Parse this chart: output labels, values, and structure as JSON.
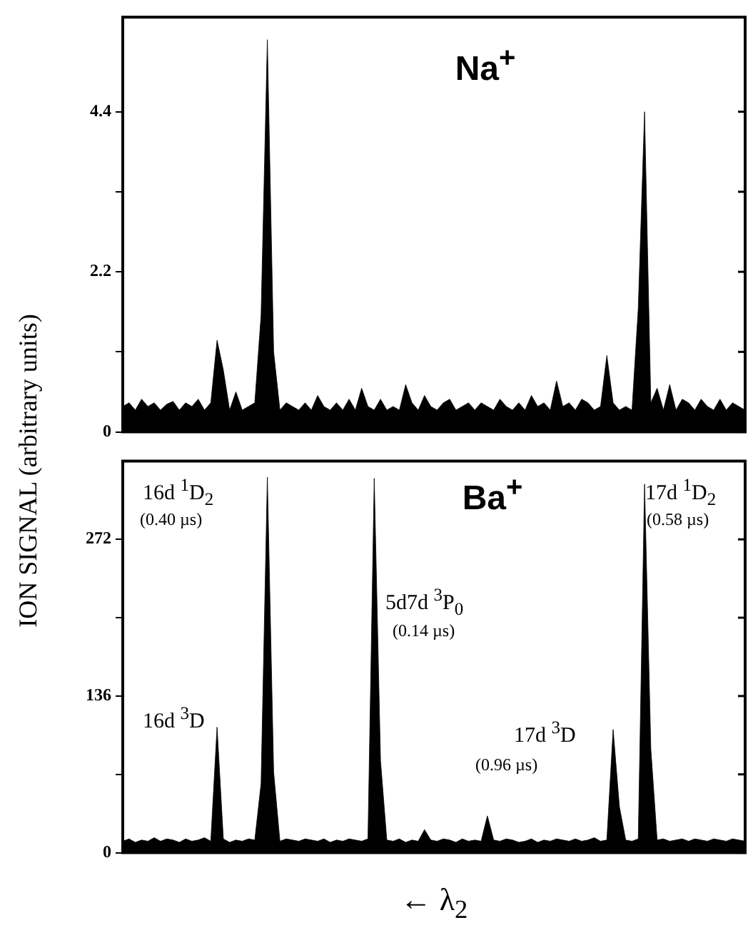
{
  "chart_data": [
    {
      "type": "area",
      "title": "Na$^{+}$",
      "ylabel": "ION SIGNAL (arbitrary units)",
      "color": "#000000",
      "tick_labels": "y",
      "legend": false,
      "ylim": [
        0,
        5.7
      ],
      "yticks": [
        0,
        {
          "value": 1.1,
          "label": null
        },
        2.2,
        {
          "value": 3.3,
          "label": null
        },
        4.4
      ],
      "categories": [
        null,
        null,
        null,
        null,
        null,
        null,
        null,
        null,
        null,
        null,
        null,
        null,
        null,
        null,
        null,
        null,
        null,
        null,
        null,
        null,
        null,
        null,
        null,
        null,
        null,
        null,
        null,
        null,
        null,
        null,
        null,
        null,
        null,
        null,
        null,
        null,
        null,
        null,
        null,
        null,
        null,
        null,
        null,
        null,
        null,
        null,
        null,
        null,
        null,
        null,
        null,
        null,
        null,
        null,
        null,
        null,
        null,
        null,
        null,
        null,
        null,
        null,
        null,
        null,
        null,
        null,
        null,
        null,
        null,
        null,
        null,
        null,
        null,
        null,
        null,
        null,
        null,
        null,
        null,
        null,
        null,
        null,
        null,
        null,
        null,
        null,
        null,
        null,
        null,
        null,
        null,
        null,
        null,
        null,
        null,
        null,
        null,
        null,
        null,
        null
      ],
      "values": [
        0.35,
        0.4,
        0.3,
        0.45,
        0.35,
        0.4,
        0.3,
        0.38,
        0.42,
        0.3,
        0.4,
        0.35,
        0.45,
        0.3,
        0.4,
        1.26,
        0.85,
        0.3,
        0.55,
        0.3,
        0.35,
        0.4,
        1.6,
        5.39,
        1.1,
        0.3,
        0.4,
        0.35,
        0.3,
        0.4,
        0.3,
        0.5,
        0.35,
        0.3,
        0.4,
        0.3,
        0.45,
        0.3,
        0.6,
        0.35,
        0.3,
        0.45,
        0.3,
        0.35,
        0.3,
        0.65,
        0.4,
        0.3,
        0.5,
        0.35,
        0.3,
        0.4,
        0.45,
        0.3,
        0.35,
        0.4,
        0.3,
        0.4,
        0.35,
        0.3,
        0.45,
        0.35,
        0.3,
        0.4,
        0.3,
        0.5,
        0.35,
        0.4,
        0.3,
        0.7,
        0.35,
        0.4,
        0.3,
        0.45,
        0.4,
        0.3,
        0.35,
        1.05,
        0.4,
        0.3,
        0.35,
        0.3,
        1.7,
        4.4,
        0.4,
        0.6,
        0.3,
        0.65,
        0.3,
        0.45,
        0.4,
        0.3,
        0.45,
        0.35,
        0.3,
        0.45,
        0.3,
        0.4,
        0.35,
        0.3
      ]
    },
    {
      "type": "area",
      "title": "Ba$^{+}$",
      "xlabel": "← λ$_{2}$",
      "color": "#000000",
      "tick_labels": "y",
      "legend": false,
      "ylim": [
        0,
        340
      ],
      "yticks": [
        0,
        {
          "value": 68,
          "label": null
        },
        136,
        {
          "value": 204,
          "label": null
        },
        272
      ],
      "categories": [
        null,
        null,
        null,
        null,
        null,
        null,
        null,
        null,
        null,
        null,
        null,
        null,
        null,
        null,
        null,
        null,
        null,
        null,
        null,
        null,
        null,
        null,
        null,
        null,
        null,
        null,
        null,
        null,
        null,
        null,
        null,
        null,
        null,
        null,
        null,
        null,
        null,
        null,
        null,
        null,
        null,
        null,
        null,
        null,
        null,
        null,
        null,
        null,
        null,
        null,
        null,
        null,
        null,
        null,
        null,
        null,
        null,
        null,
        null,
        null,
        null,
        null,
        null,
        null,
        null,
        null,
        null,
        null,
        null,
        null,
        null,
        null,
        null,
        null,
        null,
        null,
        null,
        null,
        null,
        null,
        null,
        null,
        null,
        null,
        null,
        null,
        null,
        null,
        null,
        null,
        null,
        null,
        null,
        null,
        null,
        null,
        null,
        null,
        null,
        null
      ],
      "values": [
        10,
        12,
        9,
        11,
        10,
        13,
        10,
        12,
        11,
        9,
        12,
        10,
        11,
        13,
        10,
        109,
        12,
        9,
        11,
        10,
        12,
        11,
        60,
        326,
        70,
        10,
        12,
        11,
        10,
        12,
        11,
        10,
        12,
        9,
        11,
        10,
        12,
        11,
        10,
        12,
        325,
        80,
        11,
        10,
        12,
        9,
        11,
        10,
        20,
        11,
        10,
        12,
        11,
        9,
        12,
        10,
        11,
        10,
        32,
        11,
        10,
        12,
        11,
        9,
        10,
        12,
        9,
        11,
        10,
        12,
        11,
        10,
        12,
        10,
        11,
        13,
        10,
        11,
        107,
        40,
        11,
        10,
        12,
        320,
        90,
        11,
        12,
        10,
        11,
        12,
        10,
        12,
        11,
        10,
        12,
        11,
        10,
        12,
        11,
        10
      ],
      "annotations": [
        "16d $^{1}$D$_{2}$",
        "(0.40 µs)",
        "5d7d $^{3}$P$_{0}$",
        "(0.14 µs)",
        "16d $^{3}$D",
        "17d $^{3}$D",
        "(0.96 µs)",
        "17d $^{1}$D$_{2}$",
        "(0.58 µs)"
      ]
    }
  ]
}
